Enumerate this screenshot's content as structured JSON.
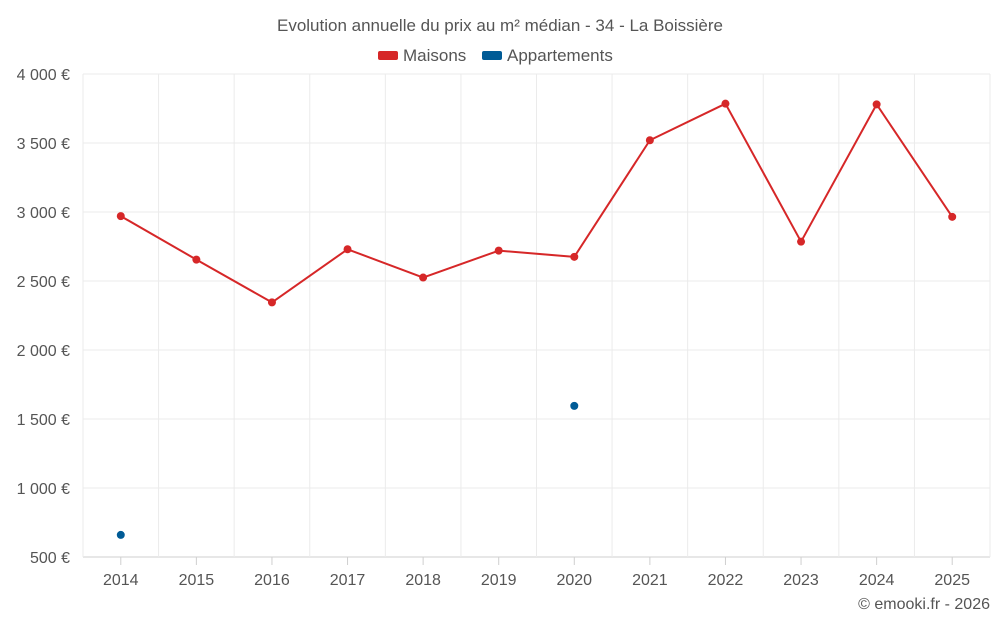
{
  "chart_data": {
    "type": "line",
    "title": "Evolution annuelle du prix au m² médian - 34 - La Boissière",
    "categories": [
      "2014",
      "2015",
      "2016",
      "2017",
      "2018",
      "2019",
      "2020",
      "2021",
      "2022",
      "2023",
      "2024",
      "2025"
    ],
    "series": [
      {
        "name": "Maisons",
        "color": "#d62728",
        "values": [
          2970,
          2655,
          2345,
          2730,
          2525,
          2720,
          2675,
          3520,
          3785,
          2785,
          3780,
          2965
        ]
      },
      {
        "name": "Appartements",
        "color": "#005b96",
        "values": [
          660,
          null,
          null,
          null,
          null,
          null,
          1595,
          null,
          null,
          null,
          null,
          null
        ]
      }
    ],
    "ylim": [
      500,
      4000
    ],
    "yticks": [
      500,
      1000,
      1500,
      2000,
      2500,
      3000,
      3500,
      4000
    ],
    "ytick_labels": [
      "500 €",
      "1 000 €",
      "1 500 €",
      "2 000 €",
      "2 500 €",
      "3 000 €",
      "3 500 €",
      "4 000 €"
    ],
    "legend_position": "top-center",
    "grid": true,
    "xlabel": "",
    "ylabel": ""
  },
  "credit": "© emooki.fr - 2026"
}
